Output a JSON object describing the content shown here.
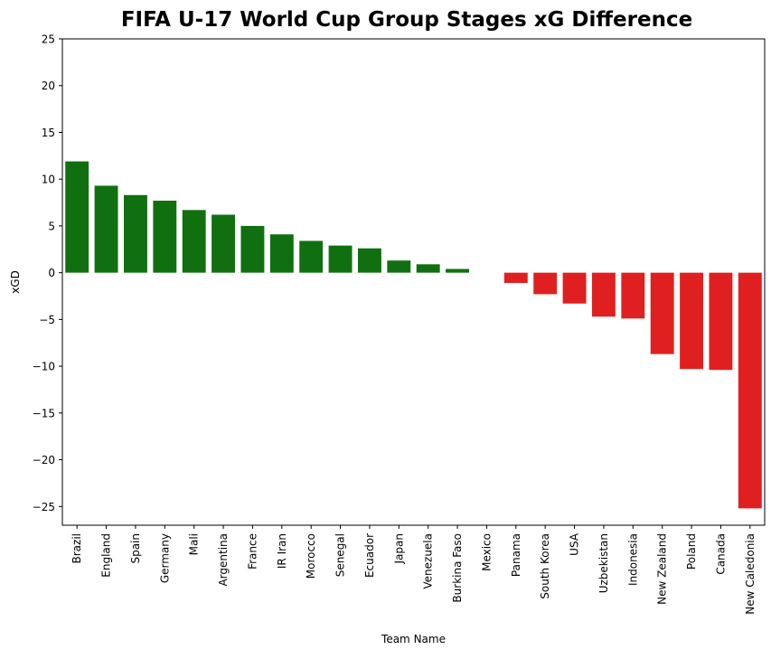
{
  "chart_data": {
    "type": "bar",
    "title": "FIFA U-17 World Cup Group Stages xG Difference",
    "xlabel": "Team Name",
    "ylabel": "xGD",
    "ylim": [
      -27,
      25
    ],
    "yticks": [
      -25,
      -20,
      -15,
      -10,
      -5,
      0,
      5,
      10,
      15,
      20,
      25
    ],
    "grid": false,
    "categories": [
      "Brazil",
      "England",
      "Spain",
      "Germany",
      "Mali",
      "Argentina",
      "France",
      "IR Iran",
      "Morocco",
      "Senegal",
      "Ecuador",
      "Japan",
      "Venezuela",
      "Burkina Faso",
      "Mexico",
      "Panama",
      "South Korea",
      "USA",
      "Uzbekistan",
      "Indonesia",
      "New Zealand",
      "Poland",
      "Canada",
      "New Caledonia"
    ],
    "values": [
      11.9,
      9.3,
      8.3,
      7.7,
      6.7,
      6.2,
      5.0,
      4.1,
      3.4,
      2.9,
      2.6,
      1.3,
      0.9,
      0.4,
      0.0,
      -1.1,
      -2.3,
      -3.3,
      -4.7,
      -4.9,
      -8.7,
      -10.3,
      -10.4,
      -25.2
    ],
    "colors": {
      "positive": "#107010",
      "negative": "#e02020"
    }
  }
}
